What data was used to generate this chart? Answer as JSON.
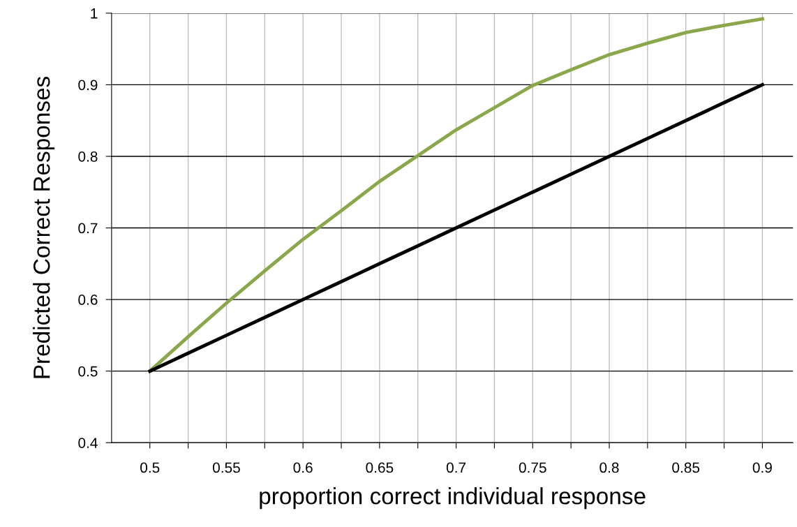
{
  "chart_data": {
    "type": "line",
    "xlabel": "proportion correct individual response",
    "ylabel": "Predicted Correct Responses",
    "x": [
      0.5,
      0.525,
      0.55,
      0.575,
      0.6,
      0.625,
      0.65,
      0.675,
      0.7,
      0.725,
      0.75,
      0.775,
      0.8,
      0.825,
      0.85,
      0.875,
      0.9
    ],
    "series": [
      {
        "color": "#8aa84b",
        "values": [
          0.5,
          0.548,
          0.595,
          0.64,
          0.684,
          0.724,
          0.765,
          0.801,
          0.837,
          0.868,
          0.899,
          0.921,
          0.942,
          0.958,
          0.973,
          0.983,
          0.992
        ]
      },
      {
        "color": "#000000",
        "values": [
          0.5,
          0.525,
          0.55,
          0.575,
          0.6,
          0.625,
          0.65,
          0.675,
          0.7,
          0.725,
          0.75,
          0.775,
          0.8,
          0.825,
          0.85,
          0.875,
          0.9
        ]
      }
    ],
    "xlim": [
      0.475,
      0.92
    ],
    "xticks": [
      0.5,
      {
        "value": 0.525,
        "label": null
      },
      0.55,
      {
        "value": 0.575,
        "label": null
      },
      0.6,
      {
        "value": 0.625,
        "label": null
      },
      0.65,
      {
        "value": 0.675,
        "label": null
      },
      0.7,
      {
        "value": 0.725,
        "label": null
      },
      0.75,
      {
        "value": 0.775,
        "label": null
      },
      0.8,
      {
        "value": 0.825,
        "label": null
      },
      0.85,
      {
        "value": 0.875,
        "label": null
      },
      0.9
    ],
    "ylim": [
      0.4,
      1
    ],
    "yticks": [
      0.4,
      0.5,
      0.6,
      0.7,
      0.8,
      0.9,
      1
    ],
    "grid": true,
    "marker": "none",
    "line_style": "solid"
  }
}
